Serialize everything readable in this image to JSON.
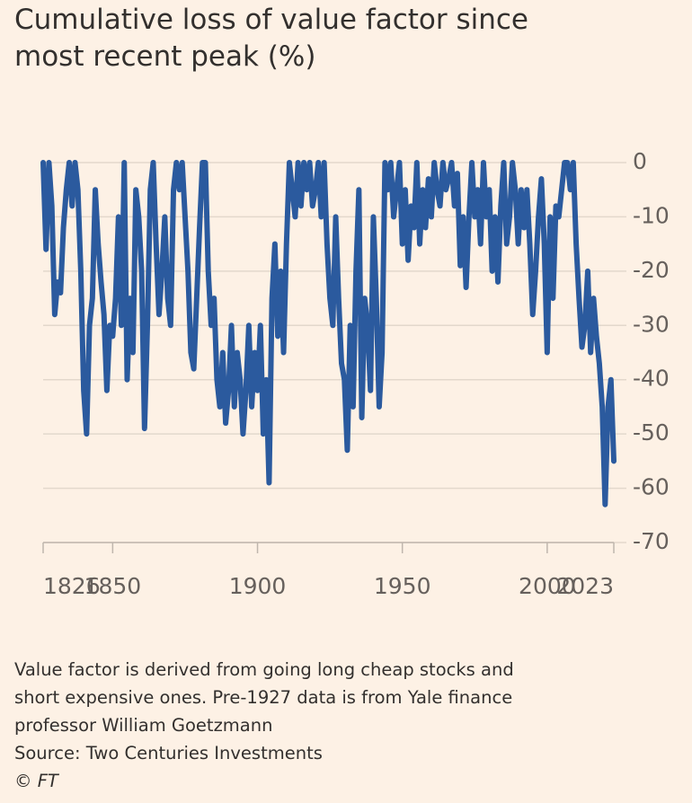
{
  "chart_data": {
    "type": "line",
    "title": "Cumulative loss of value factor since most recent peak (%)",
    "note": [
      "Value factor is derived from going long cheap stocks and",
      "short expensive ones. Pre-1927 data is from Yale finance",
      "professor William Goetzmann"
    ],
    "source": "Source: Two Centuries Investments",
    "credit": "© FT",
    "x": [
      1826,
      1827,
      1828,
      1829,
      1830,
      1831,
      1832,
      1833,
      1834,
      1835,
      1836,
      1837,
      1838,
      1839,
      1840,
      1841,
      1842,
      1843,
      1844,
      1845,
      1846,
      1847,
      1848,
      1849,
      1850,
      1851,
      1852,
      1853,
      1854,
      1855,
      1856,
      1857,
      1858,
      1859,
      1860,
      1861,
      1862,
      1863,
      1864,
      1865,
      1866,
      1867,
      1868,
      1869,
      1870,
      1871,
      1872,
      1873,
      1874,
      1875,
      1876,
      1877,
      1878,
      1879,
      1880,
      1881,
      1882,
      1883,
      1884,
      1885,
      1886,
      1887,
      1888,
      1889,
      1890,
      1891,
      1892,
      1893,
      1894,
      1895,
      1896,
      1897,
      1898,
      1899,
      1900,
      1901,
      1902,
      1903,
      1904,
      1905,
      1906,
      1907,
      1908,
      1909,
      1910,
      1911,
      1912,
      1913,
      1914,
      1915,
      1916,
      1917,
      1918,
      1919,
      1920,
      1921,
      1922,
      1923,
      1924,
      1925,
      1926,
      1927,
      1928,
      1929,
      1930,
      1931,
      1932,
      1933,
      1934,
      1935,
      1936,
      1937,
      1938,
      1939,
      1940,
      1941,
      1942,
      1943,
      1944,
      1945,
      1946,
      1947,
      1948,
      1949,
      1950,
      1951,
      1952,
      1953,
      1954,
      1955,
      1956,
      1957,
      1958,
      1959,
      1960,
      1961,
      1962,
      1963,
      1964,
      1965,
      1966,
      1967,
      1968,
      1969,
      1970,
      1971,
      1972,
      1973,
      1974,
      1975,
      1976,
      1977,
      1978,
      1979,
      1980,
      1981,
      1982,
      1983,
      1984,
      1985,
      1986,
      1987,
      1988,
      1989,
      1990,
      1991,
      1992,
      1993,
      1994,
      1995,
      1996,
      1997,
      1998,
      1999,
      2000,
      2001,
      2002,
      2003,
      2004,
      2005,
      2006,
      2007,
      2008,
      2009,
      2010,
      2011,
      2012,
      2013,
      2014,
      2015,
      2016,
      2017,
      2018,
      2019,
      2020,
      2021,
      2022,
      2023
    ],
    "series": [
      {
        "color": "#2b5a9e",
        "values": [
          0,
          -16,
          0,
          -8,
          -28,
          -22,
          -24,
          -12,
          -5,
          0,
          -8,
          0,
          -5,
          -20,
          -42,
          -50,
          -30,
          -25,
          -5,
          -15,
          -22,
          -28,
          -42,
          -30,
          -32,
          -25,
          -10,
          -30,
          0,
          -40,
          -25,
          -35,
          -5,
          -10,
          -20,
          -49,
          -30,
          -5,
          0,
          -15,
          -28,
          -20,
          -10,
          -25,
          -30,
          -5,
          0,
          -5,
          0,
          -10,
          -20,
          -35,
          -38,
          -25,
          -12,
          0,
          0,
          -20,
          -30,
          -25,
          -40,
          -45,
          -35,
          -48,
          -42,
          -30,
          -45,
          -35,
          -40,
          -50,
          -42,
          -30,
          -45,
          -35,
          -42,
          -30,
          -50,
          -40,
          -59,
          -25,
          -15,
          -32,
          -20,
          -35,
          -15,
          0,
          -5,
          -10,
          0,
          -8,
          0,
          -5,
          0,
          -8,
          -5,
          0,
          -10,
          0,
          -15,
          -25,
          -30,
          -10,
          -25,
          -37,
          -40,
          -53,
          -30,
          -45,
          -20,
          -5,
          -47,
          -25,
          -30,
          -42,
          -10,
          -25,
          -45,
          -35,
          0,
          -5,
          0,
          -10,
          -5,
          0,
          -15,
          -5,
          -18,
          -8,
          -12,
          0,
          -15,
          -5,
          -12,
          -3,
          -10,
          0,
          -5,
          -8,
          0,
          -5,
          -3,
          0,
          -8,
          -2,
          -19,
          -10,
          -23,
          -10,
          0,
          -10,
          -5,
          -15,
          0,
          -10,
          -5,
          -20,
          -10,
          -22,
          -8,
          0,
          -15,
          -10,
          0,
          -5,
          -15,
          -5,
          -12,
          -5,
          -15,
          -28,
          -20,
          -10,
          -3,
          -15,
          -35,
          -10,
          -25,
          -8,
          -10,
          -5,
          0,
          0,
          -5,
          0,
          -15,
          -25,
          -34,
          -30,
          -20,
          -35,
          -25,
          -32,
          -37,
          -45,
          -63,
          -45,
          -40,
          -55
        ]
      }
    ],
    "xlim": [
      1826,
      2023
    ],
    "xticks": [
      1826,
      1850,
      1900,
      1950,
      2000,
      2023
    ],
    "ylim": [
      -70,
      0
    ],
    "yticks": [
      0,
      -10,
      -20,
      -30,
      -40,
      -50,
      -60,
      -70
    ],
    "grid": true
  }
}
